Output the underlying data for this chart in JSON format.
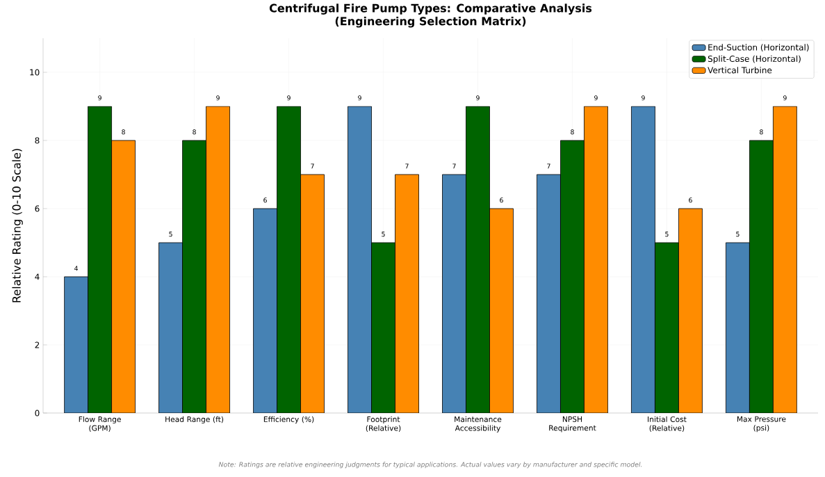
{
  "chart_data": {
    "type": "bar",
    "title": "Centrifugal Fire Pump Types: Comparative Analysis",
    "subtitle": "(Engineering Selection Matrix)",
    "ylabel": "Relative Rating (0-10 Scale)",
    "categories": [
      "Flow Range (GPM)",
      "Head Range (ft)",
      "Efficiency (%)",
      "Footprint (Relative)",
      "Maintenance Accessibility",
      "NPSH Requirement",
      "Initial Cost (Relative)",
      "Max Pressure (psi)"
    ],
    "series": [
      {
        "name": "End-Suction (Horizontal)",
        "color": "#4682b4",
        "values": [
          4,
          5,
          6,
          9,
          7,
          7,
          9,
          5
        ]
      },
      {
        "name": "Split-Case (Horizontal)",
        "color": "#006400",
        "values": [
          9,
          8,
          9,
          5,
          9,
          8,
          5,
          8
        ]
      },
      {
        "name": "Vertical Turbine",
        "color": "#ff8c00",
        "values": [
          8,
          9,
          7,
          7,
          6,
          9,
          6,
          9
        ]
      }
    ],
    "ylim": [
      0,
      11
    ],
    "yticks": [
      0,
      2,
      4,
      6,
      8,
      10
    ],
    "grid": true,
    "legend": "top right",
    "data_labels": true,
    "annotations": [
      "Note: Ratings are relative engineering judgments for typical applications. Actual values vary by manufacturer and specific model."
    ]
  }
}
